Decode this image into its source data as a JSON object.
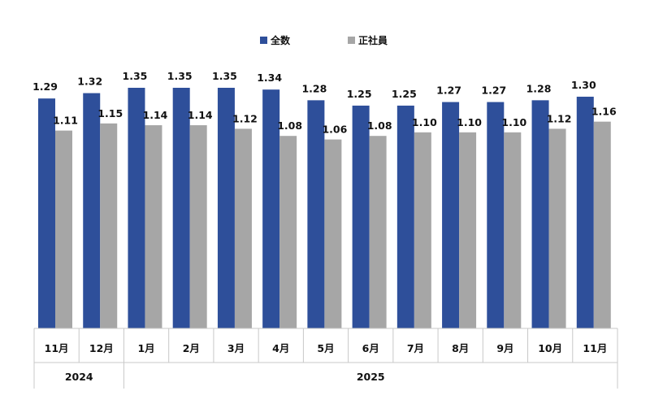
{
  "chart_data": {
    "type": "bar",
    "categories": [
      "11月",
      "12月",
      "1月",
      "2月",
      "3月",
      "4月",
      "5月",
      "6月",
      "7月",
      "8月",
      "9月",
      "10月",
      "11月"
    ],
    "year_groups": [
      {
        "label": "2024",
        "count": 2
      },
      {
        "label": "2025",
        "count": 11
      }
    ],
    "series": [
      {
        "name": "全数",
        "color": "#2e4f9a",
        "values": [
          1.29,
          1.32,
          1.35,
          1.35,
          1.35,
          1.34,
          1.28,
          1.25,
          1.25,
          1.27,
          1.27,
          1.28,
          1.3
        ],
        "labels": [
          "1.29",
          "1.32",
          "1.35",
          "1.35",
          "1.35",
          "1.34",
          "1.28",
          "1.25",
          "1.25",
          "1.27",
          "1.27",
          "1.28",
          "1.30"
        ]
      },
      {
        "name": "正社員",
        "color": "#a6a6a6",
        "values": [
          1.11,
          1.15,
          1.14,
          1.14,
          1.12,
          1.08,
          1.06,
          1.08,
          1.1,
          1.1,
          1.1,
          1.12,
          1.16
        ],
        "labels": [
          "1.11",
          "1.15",
          "1.14",
          "1.14",
          "1.12",
          "1.08",
          "1.06",
          "1.08",
          "1.10",
          "1.10",
          "1.10",
          "1.12",
          "1.16"
        ]
      }
    ],
    "ylim": [
      0,
      1.35
    ],
    "legend_position": "top-center",
    "grid": false,
    "title": "",
    "xlabel": "",
    "ylabel": ""
  }
}
